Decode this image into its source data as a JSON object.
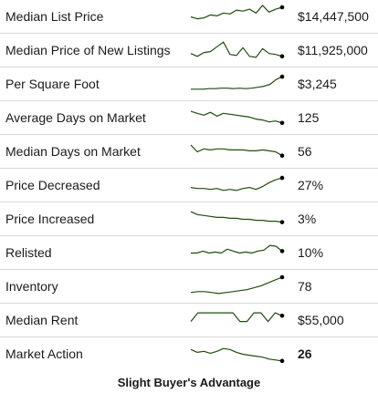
{
  "rows": [
    {
      "label": "Median List Price",
      "value": "$14,447,500",
      "bold": false,
      "trend": [
        10,
        8,
        9,
        12,
        11,
        14,
        13,
        17,
        16,
        18,
        14,
        22,
        15,
        18,
        20
      ]
    },
    {
      "label": "Median Price of New Listings",
      "value": "$11,925,000",
      "bold": false,
      "trend": [
        7,
        4,
        8,
        9,
        14,
        19,
        6,
        5,
        13,
        4,
        3,
        12,
        7,
        6,
        4
      ]
    },
    {
      "label": "Per Square Foot",
      "value": "$3,245",
      "bold": false,
      "trend": [
        5,
        5,
        5,
        5.5,
        5.5,
        6,
        6,
        5.5,
        6,
        5.5,
        6,
        7,
        8,
        10,
        15,
        18
      ]
    },
    {
      "label": "Average Days on Market",
      "value": "125",
      "bold": false,
      "trend": [
        17,
        15,
        13,
        16,
        12,
        15,
        14,
        13,
        12,
        11,
        9,
        8,
        6,
        7,
        5
      ]
    },
    {
      "label": "Median Days on Market",
      "value": "56",
      "bold": false,
      "trend": [
        17,
        10,
        13,
        12,
        13,
        13,
        12,
        12,
        12,
        11,
        11,
        12,
        11,
        10,
        6
      ]
    },
    {
      "label": "Price Decreased",
      "value": "27%",
      "bold": false,
      "trend": [
        8,
        7,
        7,
        6,
        7,
        5,
        6,
        5,
        7,
        8,
        6,
        9,
        13,
        16,
        18
      ]
    },
    {
      "label": "Price Increased",
      "value": "3%",
      "bold": false,
      "trend": [
        18,
        15,
        14,
        13,
        12,
        12,
        11,
        11,
        10,
        10,
        9,
        9,
        8,
        8,
        7
      ]
    },
    {
      "label": "Relisted",
      "value": "10%",
      "bold": false,
      "trend": [
        10,
        10,
        12,
        10,
        11,
        10,
        14,
        12,
        10,
        11,
        10,
        12,
        13,
        18,
        17,
        12
      ]
    },
    {
      "label": "Inventory",
      "value": "78",
      "bold": false,
      "trend": [
        4,
        5,
        5,
        4,
        3,
        4,
        5,
        6,
        7,
        9,
        11,
        14,
        17,
        20
      ]
    },
    {
      "label": "Median Rent",
      "value": "$55,000",
      "bold": false,
      "trend": [
        9,
        18,
        18,
        18,
        18,
        18,
        18,
        9,
        9,
        18,
        18,
        9,
        18,
        15
      ]
    },
    {
      "label": "Market Action",
      "value": "26",
      "bold": true,
      "trend": [
        15,
        12,
        13,
        11,
        13,
        16,
        15,
        12,
        10,
        9,
        8,
        7,
        5,
        4,
        3
      ]
    }
  ],
  "footer": "Slight Buyer's Advantage"
}
